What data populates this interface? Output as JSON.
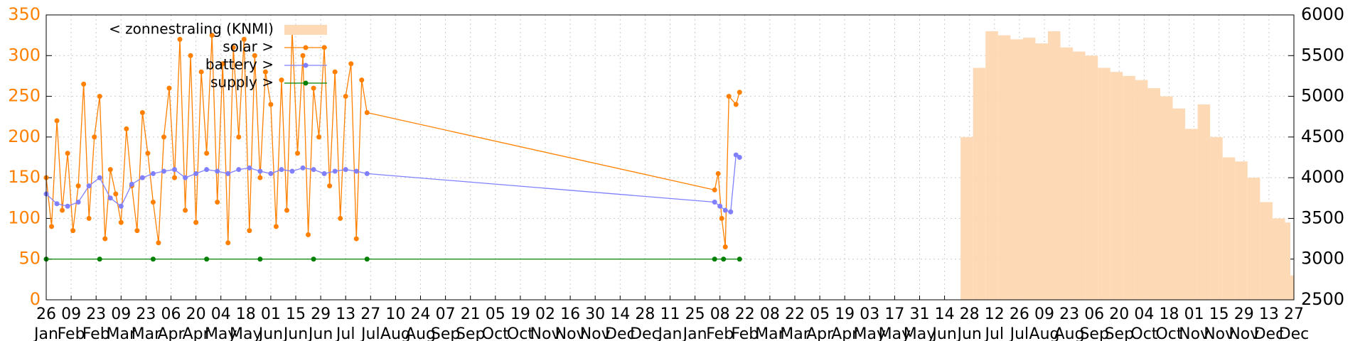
{
  "chart_data": {
    "type": "line",
    "xlim": [
      0,
      700
    ],
    "ylim": [
      0,
      350
    ],
    "yticks": [
      0,
      50,
      100,
      150,
      200,
      250,
      300,
      350
    ],
    "y2lim": [
      2500,
      6000
    ],
    "y2ticks": [
      2500,
      3000,
      3500,
      4000,
      4500,
      5000,
      5500,
      6000
    ],
    "grid": true,
    "legend": "top-left",
    "xticks": [
      {
        "value": 0,
        "label": "26"
      },
      {
        "value": 14,
        "label": "09"
      },
      {
        "value": 28,
        "label": "23"
      },
      {
        "value": 42,
        "label": "09"
      },
      {
        "value": 56,
        "label": "23"
      },
      {
        "value": 70,
        "label": "06"
      },
      {
        "value": 84,
        "label": "20"
      },
      {
        "value": 98,
        "label": "04"
      },
      {
        "value": 112,
        "label": "18"
      },
      {
        "value": 126,
        "label": "01"
      },
      {
        "value": 140,
        "label": "15"
      },
      {
        "value": 154,
        "label": "29"
      },
      {
        "value": 168,
        "label": "13"
      },
      {
        "value": 182,
        "label": "27"
      },
      {
        "value": 196,
        "label": "10"
      },
      {
        "value": 210,
        "label": "24"
      },
      {
        "value": 224,
        "label": "07"
      },
      {
        "value": 238,
        "label": "21"
      },
      {
        "value": 252,
        "label": "05"
      },
      {
        "value": 266,
        "label": "19"
      },
      {
        "value": 280,
        "label": "02"
      },
      {
        "value": 294,
        "label": "16"
      },
      {
        "value": 308,
        "label": "30"
      },
      {
        "value": 322,
        "label": "14"
      },
      {
        "value": 336,
        "label": "28"
      },
      {
        "value": 350,
        "label": "11"
      },
      {
        "value": 364,
        "label": "25"
      },
      {
        "value": 378,
        "label": "08"
      },
      {
        "value": 392,
        "label": "22"
      },
      {
        "value": 406,
        "label": "08"
      },
      {
        "value": 420,
        "label": "22"
      },
      {
        "value": 434,
        "label": "05"
      },
      {
        "value": 448,
        "label": "19"
      },
      {
        "value": 462,
        "label": "03"
      },
      {
        "value": 476,
        "label": "17"
      },
      {
        "value": 490,
        "label": "31"
      },
      {
        "value": 504,
        "label": "14"
      },
      {
        "value": 518,
        "label": "28"
      },
      {
        "value": 532,
        "label": "12"
      },
      {
        "value": 546,
        "label": "26"
      },
      {
        "value": 560,
        "label": "09"
      },
      {
        "value": 574,
        "label": "23"
      },
      {
        "value": 588,
        "label": "06"
      },
      {
        "value": 602,
        "label": "20"
      },
      {
        "value": 616,
        "label": "04"
      },
      {
        "value": 630,
        "label": "18"
      },
      {
        "value": 644,
        "label": "01"
      },
      {
        "value": 658,
        "label": "15"
      },
      {
        "value": 672,
        "label": "29"
      },
      {
        "value": 686,
        "label": "13"
      },
      {
        "value": 700,
        "label": "27"
      }
    ],
    "xtick_months": [
      "Jan",
      "Feb",
      "Feb",
      "Mar",
      "Mar",
      "Apr",
      "Apr",
      "May",
      "May",
      "Jun",
      "Jun",
      "Jun",
      "Jul",
      "Jul",
      "Aug",
      "Aug",
      "Sep",
      "Sep",
      "Oct",
      "Oct",
      "Nov",
      "Nov",
      "Nov",
      "Dec",
      "Dec",
      "Jan",
      "Jan",
      "Feb",
      "Feb",
      "Mar",
      "Mar",
      "Apr",
      "Apr",
      "May",
      "May",
      "May",
      "Jun",
      "Jun",
      "Jul",
      "Jul",
      "Aug",
      "Aug",
      "Sep",
      "Sep",
      "Oct",
      "Oct",
      "Nov",
      "Nov",
      "Nov",
      "Dec",
      "Dec"
    ],
    "series": [
      {
        "name": "< zonnestraling (KNMI)",
        "color": "#fdd9b5",
        "axis": "y2",
        "style": "area",
        "x": [
          513,
          520,
          527,
          534,
          541,
          548,
          555,
          562,
          569,
          576,
          583,
          590,
          597,
          604,
          611,
          618,
          625,
          632,
          639,
          646,
          653,
          660,
          667,
          674,
          681,
          688,
          695,
          698
        ],
        "values": [
          4500,
          5350,
          5800,
          5750,
          5700,
          5720,
          5650,
          5800,
          5600,
          5550,
          5500,
          5350,
          5300,
          5250,
          5200,
          5100,
          5000,
          4850,
          4600,
          4900,
          4500,
          4250,
          4200,
          4000,
          3700,
          3500,
          3450,
          2800
        ]
      },
      {
        "name": "solar >",
        "color": "#ff8000",
        "style": "linespoints",
        "x": [
          0,
          3,
          6,
          9,
          12,
          15,
          18,
          21,
          24,
          27,
          30,
          33,
          36,
          39,
          42,
          45,
          48,
          51,
          54,
          57,
          60,
          63,
          66,
          69,
          72,
          75,
          78,
          81,
          84,
          87,
          90,
          93,
          96,
          99,
          102,
          105,
          108,
          111,
          114,
          117,
          120,
          123,
          126,
          129,
          132,
          135,
          138,
          141,
          144,
          147,
          150,
          153,
          156,
          159,
          162,
          165,
          168,
          171,
          174,
          177,
          180,
          375,
          377,
          379,
          381,
          383,
          387,
          389
        ],
        "values": [
          150,
          90,
          220,
          110,
          180,
          85,
          140,
          265,
          100,
          200,
          250,
          75,
          160,
          130,
          95,
          210,
          140,
          85,
          230,
          180,
          120,
          70,
          200,
          260,
          150,
          320,
          110,
          300,
          95,
          280,
          180,
          325,
          120,
          290,
          70,
          310,
          200,
          320,
          85,
          300,
          150,
          280,
          240,
          90,
          270,
          110,
          330,
          180,
          300,
          80,
          260,
          200,
          310,
          140,
          280,
          100,
          250,
          290,
          75,
          270,
          230,
          135,
          155,
          100,
          65,
          250,
          240,
          255
        ]
      },
      {
        "name": "battery >",
        "color": "#8080ff",
        "style": "linespoints",
        "x": [
          0,
          6,
          12,
          18,
          24,
          30,
          36,
          42,
          48,
          54,
          60,
          66,
          72,
          78,
          84,
          90,
          96,
          102,
          108,
          114,
          120,
          126,
          132,
          138,
          144,
          150,
          156,
          162,
          168,
          174,
          180,
          375,
          378,
          381,
          384,
          387,
          389
        ],
        "values": [
          130,
          118,
          115,
          120,
          140,
          150,
          125,
          115,
          142,
          150,
          155,
          158,
          160,
          150,
          155,
          160,
          158,
          155,
          160,
          162,
          158,
          155,
          160,
          158,
          162,
          160,
          155,
          158,
          160,
          158,
          155,
          120,
          115,
          110,
          108,
          178,
          175
        ]
      },
      {
        "name": "supply >",
        "color": "#008000",
        "style": "linespoints",
        "x": [
          0,
          30,
          60,
          90,
          120,
          150,
          180,
          375,
          380,
          389
        ],
        "values": [
          50,
          50,
          50,
          50,
          50,
          50,
          50,
          50,
          50,
          50
        ]
      }
    ]
  }
}
